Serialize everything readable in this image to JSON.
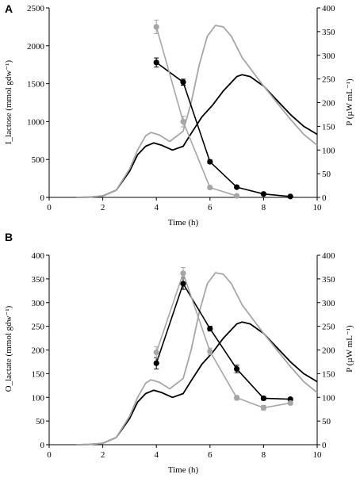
{
  "colors": {
    "black": "#000000",
    "gray": "#a6a6a6",
    "axis": "#000000"
  },
  "chart_data": [
    {
      "type": "line",
      "panel_label": "A",
      "xlabel": "Time  (h)",
      "ylabel_left": "I_lactose (mmol gdw⁻¹)",
      "ylabel_right": "P (µW mL⁻¹)",
      "xlim": [
        0,
        10
      ],
      "ylim_left": [
        0,
        2500
      ],
      "ylim_right": [
        0,
        400
      ],
      "xticks": [
        "0",
        "2",
        "4",
        "6",
        "8",
        "10"
      ],
      "yticks_left": [
        "0",
        "500",
        "1000",
        "1500",
        "2000",
        "2500"
      ],
      "yticks_right": [
        "0",
        "50",
        "100",
        "150",
        "200",
        "250",
        "300",
        "350",
        "400"
      ],
      "grid": false,
      "series": [
        {
          "axis": "left",
          "color": "black",
          "marker": "circle",
          "points": [
            [
              4,
              1780
            ],
            [
              5,
              1520
            ],
            [
              6,
              470
            ],
            [
              7,
              135
            ],
            [
              8,
              45
            ],
            [
              9,
              12
            ]
          ],
          "errors": [
            60,
            40,
            25,
            10,
            5,
            3
          ]
        },
        {
          "axis": "left",
          "color": "gray",
          "marker": "circle",
          "points": [
            [
              4,
              2250
            ],
            [
              5,
              1000
            ],
            [
              6,
              130
            ],
            [
              7,
              20
            ]
          ],
          "errors": [
            90,
            70,
            20,
            5
          ]
        },
        {
          "axis": "right",
          "color": "black",
          "marker": "none",
          "points": [
            [
              1,
              0
            ],
            [
              1.5,
              0.5
            ],
            [
              2,
              3
            ],
            [
              2.5,
              15
            ],
            [
              3,
              55
            ],
            [
              3.3,
              90
            ],
            [
              3.6,
              108
            ],
            [
              3.9,
              115
            ],
            [
              4.2,
              110
            ],
            [
              4.6,
              100
            ],
            [
              5,
              108
            ],
            [
              5.3,
              135
            ],
            [
              5.7,
              170
            ],
            [
              6.1,
              195
            ],
            [
              6.5,
              225
            ],
            [
              7,
              255
            ],
            [
              7.2,
              259
            ],
            [
              7.5,
              255
            ],
            [
              8,
              235
            ],
            [
              8.5,
              205
            ],
            [
              9,
              175
            ],
            [
              9.5,
              150
            ],
            [
              10,
              133
            ]
          ]
        },
        {
          "axis": "right",
          "color": "gray",
          "marker": "none",
          "points": [
            [
              1,
              0
            ],
            [
              1.5,
              0.5
            ],
            [
              2,
              3
            ],
            [
              2.5,
              15
            ],
            [
              3,
              60
            ],
            [
              3.3,
              100
            ],
            [
              3.6,
              130
            ],
            [
              3.8,
              137
            ],
            [
              4.1,
              132
            ],
            [
              4.5,
              118
            ],
            [
              5,
              140
            ],
            [
              5.3,
              200
            ],
            [
              5.6,
              280
            ],
            [
              5.9,
              340
            ],
            [
              6.2,
              363
            ],
            [
              6.5,
              360
            ],
            [
              6.8,
              340
            ],
            [
              7.2,
              295
            ],
            [
              7.6,
              265
            ],
            [
              8,
              235
            ],
            [
              8.5,
              200
            ],
            [
              9,
              165
            ],
            [
              9.5,
              133
            ],
            [
              10,
              110
            ]
          ]
        }
      ]
    },
    {
      "type": "line",
      "panel_label": "B",
      "xlabel": "Time  (h)",
      "ylabel_left": "O_lactate (mmol gdw⁻¹)",
      "ylabel_right": "P (µW mL⁻¹)",
      "xlim": [
        0,
        10
      ],
      "ylim_left": [
        0,
        400
      ],
      "ylim_right": [
        0,
        400
      ],
      "xticks": [
        "0",
        "2",
        "4",
        "6",
        "8",
        "10"
      ],
      "yticks_left": [
        "0",
        "50",
        "100",
        "150",
        "200",
        "250",
        "300",
        "350",
        "400"
      ],
      "yticks_right": [
        "0",
        "50",
        "100",
        "150",
        "200",
        "250",
        "300",
        "350",
        "400"
      ],
      "grid": false,
      "series": [
        {
          "axis": "left",
          "color": "black",
          "marker": "circle",
          "points": [
            [
              4,
              172
            ],
            [
              5,
              340
            ],
            [
              6,
              245
            ],
            [
              7,
              160
            ],
            [
              8,
              98
            ],
            [
              9,
              96
            ]
          ],
          "errors": [
            12,
            12,
            5,
            8,
            4,
            3
          ]
        },
        {
          "axis": "left",
          "color": "gray",
          "marker": "circle",
          "points": [
            [
              4,
              195
            ],
            [
              5,
              362
            ],
            [
              6,
              197
            ],
            [
              7,
              99
            ],
            [
              8,
              78
            ],
            [
              9,
              88
            ]
          ],
          "errors": [
            12,
            12,
            7,
            5,
            5,
            3
          ]
        },
        {
          "axis": "right",
          "color": "black",
          "marker": "none",
          "points": [
            [
              1,
              0
            ],
            [
              1.5,
              0.5
            ],
            [
              2,
              3
            ],
            [
              2.5,
              15
            ],
            [
              3,
              55
            ],
            [
              3.3,
              90
            ],
            [
              3.6,
              108
            ],
            [
              3.9,
              115
            ],
            [
              4.2,
              110
            ],
            [
              4.6,
              100
            ],
            [
              5,
              108
            ],
            [
              5.3,
              135
            ],
            [
              5.7,
              170
            ],
            [
              6.1,
              195
            ],
            [
              6.5,
              225
            ],
            [
              7,
              255
            ],
            [
              7.2,
              259
            ],
            [
              7.5,
              255
            ],
            [
              8,
              235
            ],
            [
              8.5,
              205
            ],
            [
              9,
              175
            ],
            [
              9.5,
              150
            ],
            [
              10,
              133
            ]
          ]
        },
        {
          "axis": "right",
          "color": "gray",
          "marker": "none",
          "points": [
            [
              1,
              0
            ],
            [
              1.5,
              0.5
            ],
            [
              2,
              3
            ],
            [
              2.5,
              15
            ],
            [
              3,
              60
            ],
            [
              3.3,
              100
            ],
            [
              3.6,
              130
            ],
            [
              3.8,
              137
            ],
            [
              4.1,
              132
            ],
            [
              4.5,
              118
            ],
            [
              5,
              140
            ],
            [
              5.3,
              200
            ],
            [
              5.6,
              280
            ],
            [
              5.9,
              340
            ],
            [
              6.2,
              363
            ],
            [
              6.5,
              360
            ],
            [
              6.8,
              340
            ],
            [
              7.2,
              295
            ],
            [
              7.6,
              265
            ],
            [
              8,
              235
            ],
            [
              8.5,
              200
            ],
            [
              9,
              165
            ],
            [
              9.5,
              133
            ],
            [
              10,
              110
            ]
          ]
        }
      ]
    }
  ]
}
